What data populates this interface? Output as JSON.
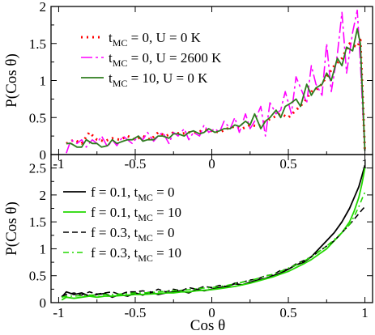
{
  "chart_data": [
    {
      "type": "line",
      "ylabel": "P(Cos θ)",
      "xlim": [
        -1.05,
        1.05
      ],
      "ylim": [
        0,
        2
      ],
      "xticks": [
        -1,
        -0.5,
        0,
        0.5,
        1
      ],
      "xtick_labels": [
        "-1",
        "-0.5",
        "0",
        "0.5",
        "1"
      ],
      "yticks": [
        0,
        0.5,
        1,
        1.5,
        2
      ],
      "ytick_labels": [
        "0",
        "0.5",
        "1",
        "1.5",
        "2"
      ],
      "legend_position": "top-left",
      "series": [
        {
          "name": "tMC = 0, U = 0 K",
          "legend": {
            "pre": "t",
            "sub": "MC",
            "post": " = 0, U = 0 K"
          },
          "color": "#ff0000",
          "dash": "2,5",
          "width": 3,
          "x": [
            -0.95,
            -0.9,
            -0.85,
            -0.8,
            -0.75,
            -0.7,
            -0.65,
            -0.6,
            -0.55,
            -0.5,
            -0.45,
            -0.4,
            -0.35,
            -0.3,
            -0.25,
            -0.2,
            -0.15,
            -0.1,
            -0.05,
            0,
            0.05,
            0.1,
            0.15,
            0.2,
            0.25,
            0.3,
            0.35,
            0.4,
            0.45,
            0.5,
            0.55,
            0.6,
            0.65,
            0.7,
            0.75,
            0.8,
            0.85,
            0.9,
            0.95,
            0.97,
            1.0
          ],
          "y": [
            0.15,
            0.2,
            0.15,
            0.3,
            0.2,
            0.18,
            0.22,
            0.2,
            0.25,
            0.2,
            0.25,
            0.2,
            0.3,
            0.25,
            0.3,
            0.28,
            0.3,
            0.3,
            0.33,
            0.32,
            0.3,
            0.35,
            0.38,
            0.35,
            0.4,
            0.38,
            0.45,
            0.5,
            0.55,
            0.5,
            0.6,
            0.7,
            0.85,
            0.9,
            1.05,
            1.2,
            1.3,
            1.5,
            1.45,
            1.55,
            0.05
          ]
        },
        {
          "name": "tMC = 0, U = 2600 K",
          "legend": {
            "pre": "t",
            "sub": "MC",
            "post": " = 0, U = 2600 K"
          },
          "color": "#ff00ff",
          "dash": "14,4,3,4",
          "width": 1.6,
          "x": [
            -0.95,
            -0.92,
            -0.88,
            -0.85,
            -0.82,
            -0.78,
            -0.75,
            -0.72,
            -0.68,
            -0.65,
            -0.62,
            -0.58,
            -0.55,
            -0.52,
            -0.48,
            -0.45,
            -0.42,
            -0.38,
            -0.35,
            -0.32,
            -0.28,
            -0.25,
            -0.22,
            -0.18,
            -0.15,
            -0.12,
            -0.08,
            -0.05,
            -0.02,
            0.02,
            0.05,
            0.08,
            0.12,
            0.15,
            0.18,
            0.22,
            0.25,
            0.28,
            0.32,
            0.35,
            0.38,
            0.42,
            0.45,
            0.48,
            0.52,
            0.55,
            0.58,
            0.62,
            0.65,
            0.68,
            0.72,
            0.75,
            0.78,
            0.82,
            0.85,
            0.88,
            0.92,
            0.95,
            0.97,
            1.0
          ],
          "y": [
            0.02,
            0.2,
            0.15,
            0.2,
            0.1,
            0.2,
            0.15,
            0.25,
            0.1,
            0.2,
            0.12,
            0.25,
            0.2,
            0.15,
            0.25,
            0.2,
            0.3,
            0.18,
            0.25,
            0.3,
            0.15,
            0.3,
            0.25,
            0.35,
            0.2,
            0.3,
            0.25,
            0.4,
            0.3,
            0.35,
            0.3,
            0.45,
            0.35,
            0.5,
            0.3,
            0.55,
            0.35,
            0.45,
            0.65,
            0.25,
            0.7,
            0.55,
            0.6,
            0.85,
            0.55,
            1.05,
            0.9,
            0.7,
            1.2,
            0.95,
            0.8,
            1.5,
            0.85,
            1.35,
            1.92,
            1.1,
            1.65,
            1.95,
            1.25,
            0.05
          ]
        },
        {
          "name": "tMC = 10, U = 0 K",
          "legend": {
            "pre": "t",
            "sub": "MC",
            "post": " = 10, U = 0 K"
          },
          "color": "#2e7d1e",
          "dash": "",
          "width": 1.8,
          "x": [
            -0.95,
            -0.92,
            -0.88,
            -0.85,
            -0.82,
            -0.78,
            -0.75,
            -0.72,
            -0.68,
            -0.65,
            -0.62,
            -0.58,
            -0.55,
            -0.52,
            -0.48,
            -0.45,
            -0.42,
            -0.38,
            -0.35,
            -0.32,
            -0.28,
            -0.25,
            -0.22,
            -0.18,
            -0.15,
            -0.12,
            -0.08,
            -0.05,
            -0.02,
            0.02,
            0.05,
            0.08,
            0.12,
            0.15,
            0.18,
            0.22,
            0.25,
            0.28,
            0.32,
            0.35,
            0.38,
            0.42,
            0.45,
            0.48,
            0.52,
            0.55,
            0.58,
            0.62,
            0.65,
            0.68,
            0.72,
            0.75,
            0.78,
            0.82,
            0.85,
            0.88,
            0.92,
            0.95,
            0.97,
            1.0
          ],
          "y": [
            0.15,
            0.15,
            0.1,
            0.1,
            0.2,
            0.15,
            0.15,
            0.1,
            0.12,
            0.2,
            0.15,
            0.18,
            0.2,
            0.2,
            0.25,
            0.18,
            0.2,
            0.2,
            0.25,
            0.25,
            0.22,
            0.28,
            0.28,
            0.25,
            0.3,
            0.32,
            0.28,
            0.3,
            0.35,
            0.3,
            0.32,
            0.35,
            0.35,
            0.4,
            0.38,
            0.45,
            0.4,
            0.55,
            0.35,
            0.45,
            0.5,
            0.6,
            0.5,
            0.65,
            0.7,
            0.75,
            0.65,
            0.95,
            0.8,
            0.9,
            0.95,
            1.1,
            1.0,
            1.3,
            1.2,
            1.45,
            1.4,
            1.7,
            1.5,
            0.05
          ]
        }
      ]
    },
    {
      "type": "line",
      "xlabel": "Cos θ",
      "ylabel": "P(Cos  θ)",
      "xlim": [
        -1.05,
        1.05
      ],
      "ylim": [
        0,
        2.75
      ],
      "xticks": [
        -1,
        -0.5,
        0,
        0.5,
        1
      ],
      "xtick_labels": [
        "-1",
        "-0.5",
        "0",
        "0.5",
        "1"
      ],
      "yticks": [
        0,
        0.5,
        1,
        1.5,
        2,
        2.5
      ],
      "ytick_labels": [
        "0",
        "0.5",
        "1",
        "1.5",
        "2",
        "2.5"
      ],
      "legend_position": "top-left",
      "series": [
        {
          "name": "f = 0.1, tMC = 0",
          "legend": {
            "pre": "f = 0.1, t",
            "sub": "MC",
            "post": " = 0"
          },
          "color": "#000000",
          "dash": "",
          "width": 1.8,
          "x": [
            -0.98,
            -0.95,
            -0.9,
            -0.85,
            -0.8,
            -0.75,
            -0.7,
            -0.65,
            -0.6,
            -0.55,
            -0.5,
            -0.45,
            -0.4,
            -0.35,
            -0.3,
            -0.25,
            -0.2,
            -0.15,
            -0.1,
            -0.05,
            0,
            0.05,
            0.1,
            0.15,
            0.2,
            0.25,
            0.3,
            0.35,
            0.4,
            0.45,
            0.5,
            0.55,
            0.6,
            0.65,
            0.7,
            0.75,
            0.8,
            0.85,
            0.9,
            0.93,
            0.96,
            0.98,
            1.0
          ],
          "y": [
            0.1,
            0.2,
            0.15,
            0.18,
            0.12,
            0.15,
            0.17,
            0.1,
            0.15,
            0.12,
            0.18,
            0.14,
            0.2,
            0.15,
            0.18,
            0.2,
            0.22,
            0.18,
            0.25,
            0.22,
            0.25,
            0.28,
            0.3,
            0.35,
            0.33,
            0.38,
            0.42,
            0.45,
            0.5,
            0.55,
            0.62,
            0.7,
            0.75,
            0.85,
            1.0,
            1.15,
            1.3,
            1.5,
            1.75,
            1.95,
            2.15,
            2.35,
            2.55
          ]
        },
        {
          "name": "f = 0.1, tMC = 10",
          "legend": {
            "pre": "f = 0.1, t",
            "sub": "MC",
            "post": " = 10"
          },
          "color": "#22d800",
          "dash": "",
          "width": 1.8,
          "x": [
            -0.98,
            -0.95,
            -0.9,
            -0.85,
            -0.8,
            -0.75,
            -0.7,
            -0.65,
            -0.6,
            -0.55,
            -0.5,
            -0.45,
            -0.4,
            -0.35,
            -0.3,
            -0.25,
            -0.2,
            -0.15,
            -0.1,
            -0.05,
            0,
            0.05,
            0.1,
            0.15,
            0.2,
            0.25,
            0.3,
            0.35,
            0.4,
            0.45,
            0.5,
            0.55,
            0.6,
            0.65,
            0.7,
            0.75,
            0.8,
            0.85,
            0.9,
            0.93,
            0.96,
            0.98,
            1.0
          ],
          "y": [
            0.05,
            0.1,
            0.08,
            0.1,
            0.12,
            0.1,
            0.12,
            0.12,
            0.13,
            0.14,
            0.15,
            0.15,
            0.16,
            0.17,
            0.18,
            0.18,
            0.2,
            0.2,
            0.22,
            0.23,
            0.24,
            0.26,
            0.28,
            0.3,
            0.33,
            0.36,
            0.4,
            0.44,
            0.48,
            0.53,
            0.58,
            0.65,
            0.72,
            0.8,
            0.9,
            1.0,
            1.15,
            1.3,
            1.5,
            1.7,
            1.95,
            2.2,
            2.5
          ]
        },
        {
          "name": "f = 0.3, tMC = 0",
          "legend": {
            "pre": "f = 0.3, t",
            "sub": "MC",
            "post": " = 0"
          },
          "color": "#000000",
          "dash": "7,4",
          "width": 1.6,
          "x": [
            -0.98,
            -0.95,
            -0.9,
            -0.85,
            -0.8,
            -0.75,
            -0.7,
            -0.65,
            -0.6,
            -0.55,
            -0.5,
            -0.45,
            -0.4,
            -0.35,
            -0.3,
            -0.25,
            -0.2,
            -0.15,
            -0.1,
            -0.05,
            0,
            0.05,
            0.1,
            0.15,
            0.2,
            0.25,
            0.3,
            0.35,
            0.4,
            0.45,
            0.5,
            0.55,
            0.6,
            0.65,
            0.7,
            0.75,
            0.8,
            0.85,
            0.9,
            0.93,
            0.96,
            0.98,
            1.0
          ],
          "y": [
            0.12,
            0.15,
            0.18,
            0.14,
            0.2,
            0.16,
            0.18,
            0.2,
            0.15,
            0.2,
            0.2,
            0.22,
            0.18,
            0.25,
            0.2,
            0.25,
            0.22,
            0.28,
            0.25,
            0.3,
            0.28,
            0.32,
            0.3,
            0.36,
            0.38,
            0.42,
            0.44,
            0.5,
            0.52,
            0.6,
            0.62,
            0.72,
            0.78,
            0.85,
            0.95,
            1.05,
            1.15,
            1.3,
            1.45,
            1.55,
            1.65,
            1.72,
            1.78
          ]
        },
        {
          "name": "f = 0.3, tMC = 10",
          "legend": {
            "pre": "f = 0.3, t",
            "sub": "MC",
            "post": " = 10"
          },
          "color": "#22d800",
          "dash": "7,4,2,4",
          "width": 1.6,
          "x": [
            -0.98,
            -0.95,
            -0.9,
            -0.85,
            -0.8,
            -0.75,
            -0.7,
            -0.65,
            -0.6,
            -0.55,
            -0.5,
            -0.45,
            -0.4,
            -0.35,
            -0.3,
            -0.25,
            -0.2,
            -0.15,
            -0.1,
            -0.05,
            0,
            0.05,
            0.1,
            0.15,
            0.2,
            0.25,
            0.3,
            0.35,
            0.4,
            0.45,
            0.5,
            0.55,
            0.6,
            0.65,
            0.7,
            0.75,
            0.8,
            0.85,
            0.9,
            0.93,
            0.96,
            0.98,
            1.0
          ],
          "y": [
            0.1,
            0.12,
            0.12,
            0.13,
            0.14,
            0.14,
            0.15,
            0.15,
            0.16,
            0.17,
            0.18,
            0.18,
            0.19,
            0.2,
            0.21,
            0.22,
            0.23,
            0.24,
            0.26,
            0.27,
            0.28,
            0.3,
            0.32,
            0.35,
            0.38,
            0.41,
            0.45,
            0.49,
            0.53,
            0.58,
            0.64,
            0.7,
            0.77,
            0.85,
            0.95,
            1.05,
            1.17,
            1.3,
            1.45,
            1.6,
            1.78,
            1.92,
            2.05
          ]
        }
      ]
    }
  ]
}
